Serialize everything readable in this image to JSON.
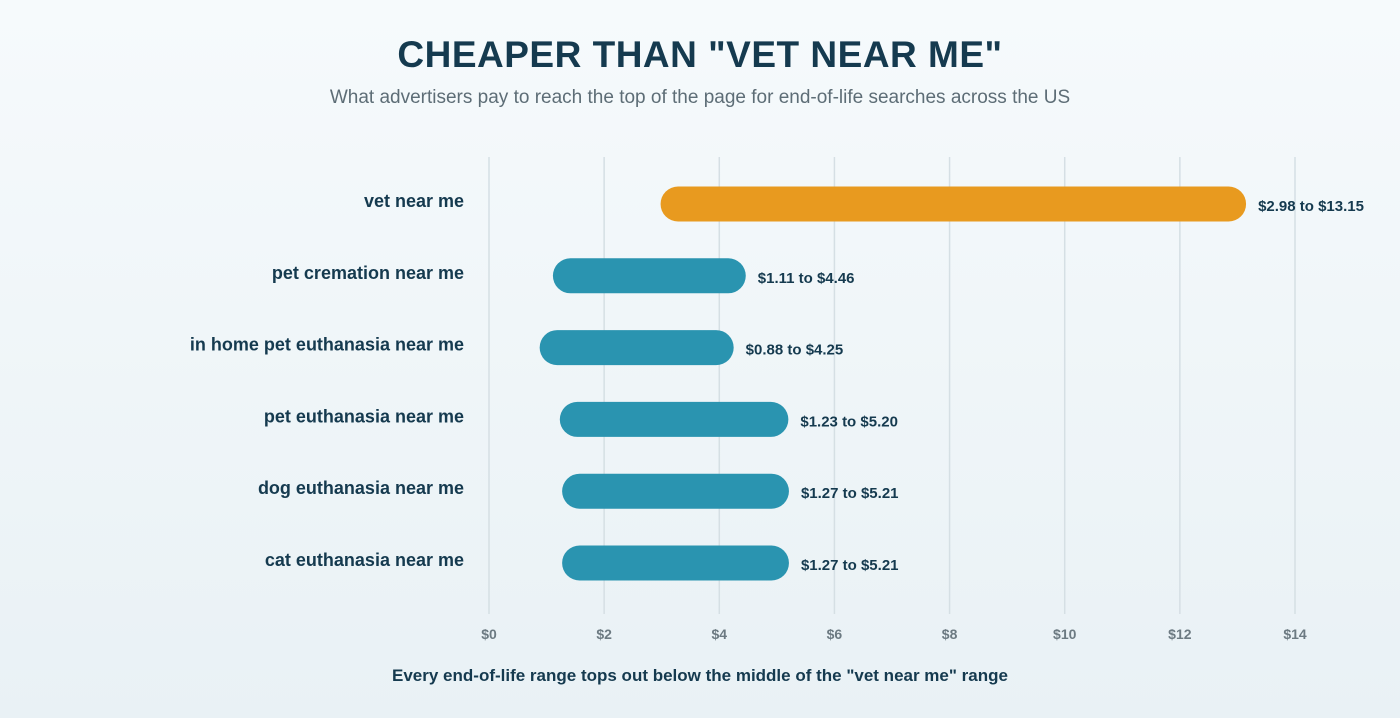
{
  "chart_data": {
    "type": "bar",
    "orientation": "horizontal",
    "subtype": "range",
    "title": "CHEAPER THAN \"VET NEAR ME\"",
    "subtitle": "What advertisers pay to reach the top of the page for end-of-life searches across the US",
    "footnote": "Every end-of-life range tops out below the middle of the \"vet near me\" range",
    "xlim": [
      0,
      14
    ],
    "xticks": [
      0,
      2,
      4,
      6,
      8,
      10,
      12,
      14
    ],
    "xtick_labels": [
      "$0",
      "$2",
      "$4",
      "$6",
      "$8",
      "$10",
      "$12",
      "$14"
    ],
    "grid": "vertical",
    "categories": [
      "vet near me",
      "pet cremation near me",
      "in home pet euthanasia near me",
      "pet euthanasia near me",
      "dog euthanasia near me",
      "cat euthanasia near me"
    ],
    "ranges": [
      {
        "low": 2.98,
        "high": 13.15,
        "label": "$2.98 to $13.15",
        "color": "#e89a1f"
      },
      {
        "low": 1.11,
        "high": 4.46,
        "label": "$1.11 to $4.46",
        "color": "#2a94b0"
      },
      {
        "low": 0.88,
        "high": 4.25,
        "label": "$0.88 to $4.25",
        "color": "#2a94b0"
      },
      {
        "low": 1.23,
        "high": 5.2,
        "label": "$1.23 to $5.20",
        "color": "#2a94b0"
      },
      {
        "low": 1.27,
        "high": 5.21,
        "label": "$1.27 to $5.21",
        "color": "#2a94b0"
      },
      {
        "low": 1.27,
        "high": 5.21,
        "label": "$1.27 to $5.21",
        "color": "#2a94b0"
      }
    ],
    "colors": {
      "highlight": "#e89a1f",
      "default": "#2a94b0",
      "grid": "#d5dfe4",
      "text": "#153a4f",
      "tick": "#6c7a82"
    }
  }
}
